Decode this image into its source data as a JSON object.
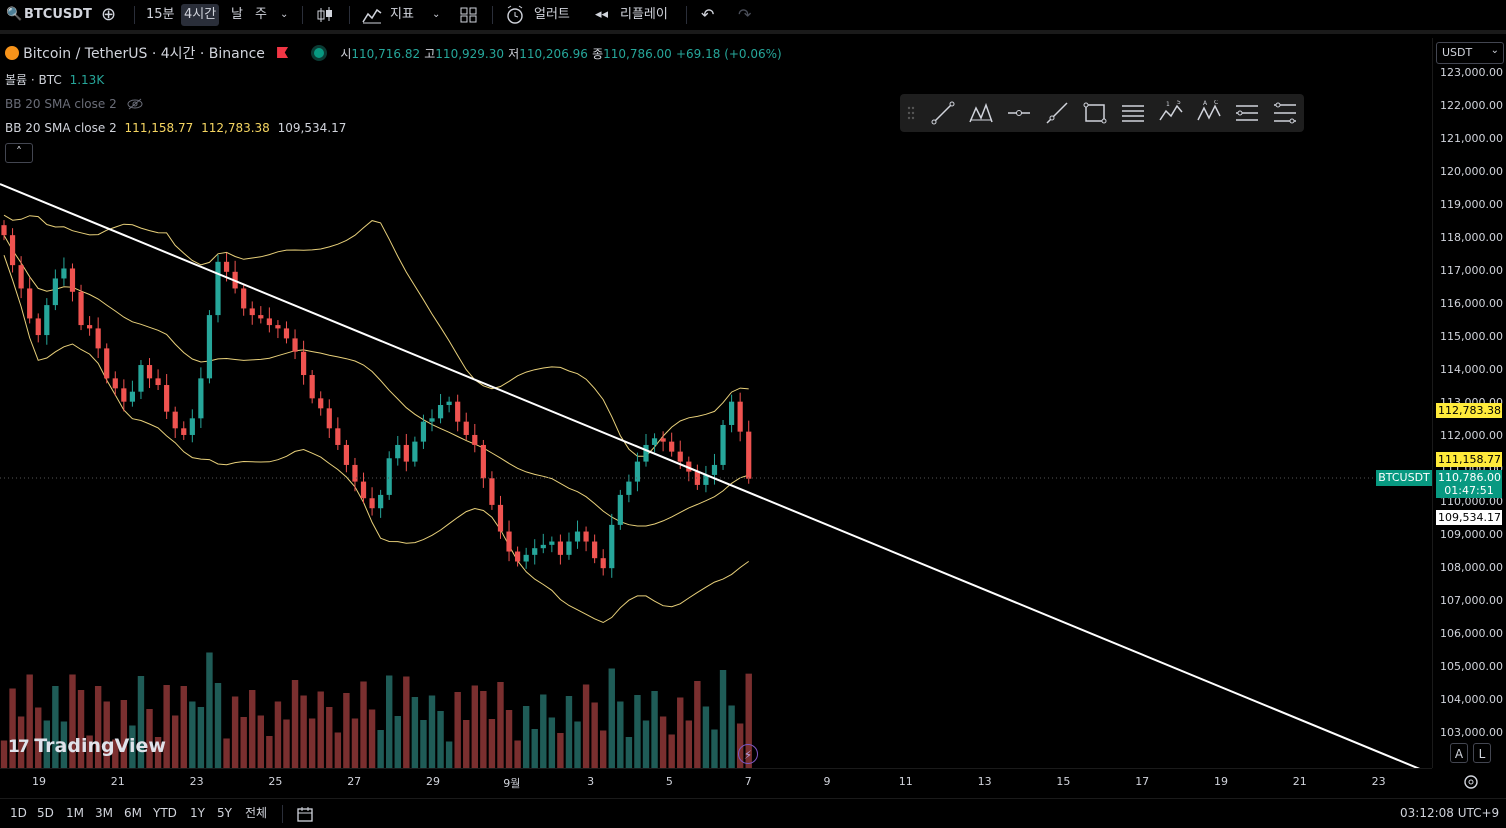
{
  "toolbar": {
    "symbol": "BTCUSDT",
    "intervals": [
      "15분",
      "4시간",
      "날",
      "주"
    ],
    "active_interval": "4시간",
    "indicators": "지표",
    "alerts": "얼러트",
    "replay": "리플레이"
  },
  "legend": {
    "title": "Bitcoin / TetherUS · 4시간 · Binance",
    "o_label": "시",
    "o_value": "110,716.82",
    "h_label": "고",
    "h_value": "110,929.30",
    "l_label": "저",
    "l_value": "110,206.96",
    "c_label": "종",
    "c_value": "110,786.00",
    "change": "+69.18 (+0.06%)",
    "volume_label": "볼륨 · BTC",
    "volume_value": "1.13K",
    "bb1_label": "BB 20 SMA close 2",
    "bb2_label": "BB 20 SMA close 2",
    "bb_basis": "111,158.77",
    "bb_upper": "112,783.38",
    "bb_lower": "109,534.17"
  },
  "price_axis": {
    "currency": "USDT",
    "labels": [
      "123,000.00",
      "122,000.00",
      "121,000.00",
      "120,000.00",
      "119,000.00",
      "118,000.00",
      "117,000.00",
      "116,000.00",
      "115,000.00",
      "114,000.00",
      "113,000.00",
      "112,000.00",
      "111,000.00",
      "110,000.00",
      "109,000.00",
      "108,000.00",
      "107,000.00",
      "106,000.00",
      "105,000.00",
      "104,000.00",
      "103,000.00"
    ],
    "tag_upper": "112,783.38",
    "tag_basis": "111,158.77",
    "tag_price": "110,786.00",
    "tag_countdown": "01:47:51",
    "tag_lower": "109,534.17",
    "symbol_tag": "BTCUSDT"
  },
  "time_axis": {
    "labels": [
      "19",
      "21",
      "23",
      "25",
      "27",
      "29",
      "9월",
      "3",
      "5",
      "7",
      "9",
      "11",
      "13",
      "15",
      "17",
      "19",
      "21",
      "23"
    ]
  },
  "bottom": {
    "ranges": [
      "1D",
      "5D",
      "1M",
      "3M",
      "6M",
      "YTD",
      "1Y",
      "5Y",
      "전체"
    ],
    "clock": "03:12:08 UTC+9",
    "auto": "A",
    "log": "L"
  },
  "watermark": "TradingView",
  "colors": {
    "up": "#26a69a",
    "down": "#ef5350",
    "band": "#e8d07a",
    "trendline": "#ffffff",
    "highlight": "#ffeb3b"
  },
  "chart_data": {
    "type": "candlestick",
    "title": "Bitcoin / TetherUS · 4시간 · Binance",
    "ylim": [
      103000,
      123000
    ],
    "close_series_approx": [
      118100,
      117200,
      116500,
      115600,
      115100,
      116000,
      116800,
      117100,
      116400,
      115400,
      115300,
      114700,
      113800,
      113500,
      113100,
      113400,
      114200,
      113800,
      113600,
      112800,
      112300,
      112100,
      112600,
      113800,
      115700,
      117300,
      117000,
      116500,
      115900,
      115700,
      115600,
      115400,
      115300,
      115000,
      114600,
      113900,
      113200,
      112900,
      112300,
      111800,
      111200,
      110700,
      110200,
      109900,
      110300,
      111400,
      111800,
      111300,
      111900,
      112500,
      112600,
      113000,
      113100,
      112500,
      112100,
      111800,
      110800,
      110000,
      109200,
      108600,
      108300,
      108500,
      108700,
      108800,
      108900,
      108500,
      108900,
      109200,
      108900,
      108400,
      108100,
      109400,
      110300,
      110700,
      111300,
      111800,
      112000,
      111900,
      111600,
      111300,
      111000,
      110600,
      110900,
      111200,
      112400,
      113100,
      112200,
      110786
    ]
  }
}
